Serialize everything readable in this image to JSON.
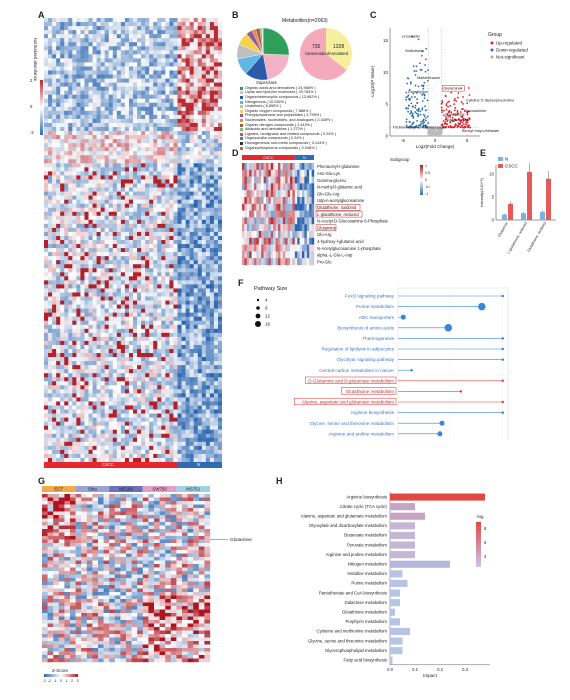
{
  "panels": {
    "A": {
      "letter": "A",
      "legend_title": "Normalized abundance",
      "legend_ticks": [
        "2",
        "1",
        "0",
        "-1",
        "-2"
      ],
      "groups": [
        "CSCC",
        "N"
      ],
      "group_colors": [
        "#e8262b",
        "#2f6db3"
      ]
    },
    "B": {
      "letter": "B",
      "pie1_title": "Metabolites(n=2063)",
      "pie2_labels": [
        "735\nUnannotated",
        "1328\nAnnotated"
      ],
      "pie2_a": "735",
      "pie2_a_sub": "Unannotated",
      "pie2_b": "1328",
      "pie2_b_sub": "Annotated",
      "superclass_title": "Superclass",
      "superclass_items": [
        {
          "label": "Organic acids and derivatives ( 24.968% )",
          "color": "#2e9e5b"
        },
        {
          "label": "Lipids and lipid-like molecules ( 20.783% )",
          "color": "#f3b3c7"
        },
        {
          "label": "Organoheterocyclic compounds ( 13.962% )",
          "color": "#2a5aa8"
        },
        {
          "label": "Nitrogenous ( 10.236% )",
          "color": "#5fb7e6"
        },
        {
          "label": "Undefined ( 8.855% )",
          "color": "#bfbfbf"
        },
        {
          "label": "Organic oxygen compounds ( 7.886% )",
          "color": "#f7d34c"
        },
        {
          "label": "Phenylpropanoids and polyketides ( 3.795% )",
          "color": "#8e5aa8"
        },
        {
          "label": "Nucleosides, nucleotides, and analogues ( 2.338% )",
          "color": "#e88a3c"
        },
        {
          "label": "Organic nitrogen compounds ( 2.443% )",
          "color": "#a55a3c"
        },
        {
          "label": "Alkaloids and derivatives ( 1.272% )",
          "color": "#7fbf7f"
        },
        {
          "label": "Lignans, neolignans and related compounds ( 0.24% )",
          "color": "#d64b6b"
        },
        {
          "label": "Organosulfur compounds ( 0.24% )",
          "color": "#4b8b8b"
        },
        {
          "label": "Homogeneous non-metal compounds ( 0.144% )",
          "color": "#333333"
        },
        {
          "label": "Organophosphorus compounds ( 0.048% )",
          "color": "#9b7b3c"
        }
      ]
    },
    "C": {
      "letter": "C",
      "ylabel": "-Log10(P Value)",
      "xlabel": "Log2(Fold Change)",
      "legend_title": "Group",
      "legend_items": [
        {
          "label": "Up-regulated",
          "color": "#d7242b"
        },
        {
          "label": "Down-regulated",
          "color": "#2d6fb5"
        },
        {
          "label": "Not-significant",
          "color": "#aaaaaa"
        }
      ],
      "labels": [
        "Linoelaidin",
        "Maltotriose",
        "Maltotetraose",
        "Dimethylpin",
        "Trichlormethyl-ammonium base",
        "Glutamine",
        "Cytidine 5'-diphosphocholine",
        "Glucosamine",
        "Glutathione",
        "Gentisic acid",
        "Benzyl butyl phthalate"
      ],
      "yticks": [
        "15",
        "10",
        "5",
        "0"
      ],
      "xticks": [
        "-5",
        "0",
        "5"
      ]
    },
    "D": {
      "letter": "D",
      "top_groups": [
        "CSCC",
        "N"
      ],
      "legend_title": "Subgroup",
      "rows": [
        "Phenacetyl-l-glutamine",
        "Asn-Glu-Lys",
        "Gamma-glu-leu",
        "N-methyl-l-glutamic acid",
        "Gln-Glu-Arg",
        "Udp-n-acetylglucosamine",
        "Glutathione, oxidized",
        "L-glutathione, reduced",
        "N-Acetyl-D-Glucosamine 6-Phosphate",
        "Glutamine",
        "Glu-Arg",
        "4-hydroxy-l-glutamic acid",
        "N-Acetylglucosamine 1-phosphate",
        "alpha.-L-Glu-L-Asp",
        "Pro-Glu"
      ],
      "boxed_rows": [
        "Glutathione, oxidized",
        "L-glutathione, reduced",
        "Glutamine"
      ],
      "scale_ticks": [
        "1",
        "0.5",
        "0",
        "-0.5",
        "-1"
      ]
    },
    "E": {
      "letter": "E",
      "ylabel": "Intensity(X10^7)",
      "legend_items": [
        {
          "label": "N",
          "color": "#7ab3e0"
        },
        {
          "label": "CSCC",
          "color": "#e45a5a"
        }
      ],
      "categories": [
        "Glutamine",
        "L-glutathione, reduced",
        "Glutathione, oxidized"
      ],
      "yticks": [
        "10",
        "5",
        "0"
      ]
    },
    "F": {
      "letter": "F",
      "size_title": "Pathway Size",
      "size_values": [
        "4",
        "8",
        "12",
        "16"
      ],
      "xticks": [
        "0.0",
        "0.5",
        "1.0"
      ],
      "pathways": [
        "FoxO signaling pathway",
        "Purine metabolism",
        "ABC transporters",
        "Biosynthesis of amino acids",
        "Thermogenesis",
        "Regulation of lipolysis in adipocytes",
        "Glycolytic signaling pathway",
        "Central carbon metabolism in cancer",
        "D-Glutamine and D-glutamate metabolism",
        "Glutathione metabolism",
        "Alanine, aspartate and glutamate metabolism",
        "Arginine biosynthesis",
        "Glycine, serine and threonine metabolism",
        "Arginine and proline metabolism"
      ],
      "highlighted": [
        "D-Glutamine and D-glutamate metabolism",
        "Glutathione metabolism",
        "Alanine, aspartate and glutamate metabolism"
      ]
    },
    "G": {
      "letter": "G",
      "groups": [
        "ECT",
        "Siha",
        "ME180",
        "SW756",
        "MS751"
      ],
      "group_colors": [
        "#f2a94a",
        "#9aa3d6",
        "#6a72b8",
        "#e2a0c8",
        "#9fd0e6"
      ],
      "row_label": "Glutamine",
      "scale_title": "Z-Score",
      "scale_ticks": [
        "-3",
        "-2",
        "-1",
        "0",
        "1",
        "2",
        "3"
      ]
    },
    "H": {
      "letter": "H",
      "pathways": [
        "Arginine biosynthesis",
        "Citrate cycle (TCA cycle)",
        "Alanine, aspartate and glutamate metabolism",
        "Glyoxylate and dicarboxylate metabolism",
        "Butanoate metabolism",
        "Pyruvate metabolism",
        "Arginine and proline metabolism",
        "Nitrogen metabolism",
        "Histidine metabolism",
        "Purine metabolism",
        "Pantothenate and CoA biosynthesis",
        "Galactose metabolism",
        "Glutathione metabolism",
        "Porphyrin metabolism",
        "Cysteine and methionine metabolism",
        "Glycine, serine and threonine metabolism",
        "Glycerophospholipid metabolism",
        "Fatty acid biosynthesis"
      ],
      "impact": [
        0.38,
        0.1,
        0.14,
        0.1,
        0.1,
        0.1,
        0.1,
        0.24,
        0.05,
        0.07,
        0.04,
        0.04,
        0.02,
        0.04,
        0.08,
        0.05,
        0.05,
        0.01
      ],
      "xlabel": "Impact",
      "xticks": [
        "0.0",
        "0.1",
        "0.2",
        "0.3"
      ],
      "legend_title": "-log",
      "legend_ticks": [
        "8",
        "6",
        "4"
      ]
    }
  },
  "chart_data": [
    {
      "type": "scatter",
      "title": "F",
      "categories": [
        "FoxO signaling pathway",
        "Purine metabolism",
        "ABC transporters",
        "Biosynthesis of amino acids",
        "Thermogenesis",
        "Regulation of lipolysis in adipocytes",
        "Glycolytic signaling pathway",
        "Central carbon metabolism in cancer",
        "D-Glutamine and D-glutamate metabolism",
        "Glutathione metabolism",
        "Alanine, aspartate and glutamate metabolism",
        "Arginine biosynthesis",
        "Glycine, serine and threonine metabolism",
        "Arginine and proline metabolism"
      ],
      "values": [
        1.0,
        0.8,
        0.05,
        0.48,
        1.0,
        1.0,
        1.0,
        0.13,
        1.0,
        0.6,
        1.0,
        1.0,
        0.42,
        0.4
      ],
      "sizes": [
        4,
        12,
        8,
        12,
        4,
        4,
        4,
        4,
        4,
        4,
        4,
        4,
        8,
        8
      ],
      "highlight": [
        false,
        false,
        false,
        false,
        false,
        false,
        false,
        false,
        true,
        true,
        true,
        false,
        false,
        false
      ],
      "xlim": [
        0,
        1.05
      ]
    },
    {
      "type": "bar",
      "title": "H",
      "categories": [
        "Arginine biosynthesis",
        "Citrate cycle (TCA cycle)",
        "Alanine, aspartate and glutamate metabolism",
        "Glyoxylate and dicarboxylate metabolism",
        "Butanoate metabolism",
        "Pyruvate metabolism",
        "Arginine and proline metabolism",
        "Nitrogen metabolism",
        "Histidine metabolism",
        "Purine metabolism",
        "Pantothenate and CoA biosynthesis",
        "Galactose metabolism",
        "Glutathione metabolism",
        "Porphyrin metabolism",
        "Cysteine and methionine metabolism",
        "Glycine, serine and threonine metabolism",
        "Glycerophospholipid metabolism",
        "Fatty acid biosynthesis"
      ],
      "values": [
        0.38,
        0.1,
        0.14,
        0.1,
        0.1,
        0.1,
        0.1,
        0.24,
        0.05,
        0.07,
        0.04,
        0.04,
        0.02,
        0.04,
        0.08,
        0.05,
        0.05,
        0.01
      ],
      "xlabel": "Impact",
      "xlim": [
        0,
        0.4
      ]
    },
    {
      "type": "bar",
      "title": "E",
      "categories": [
        "Glutamine",
        "L-glutathione, reduced",
        "Glutathione, oxidized"
      ],
      "series": [
        {
          "name": "N",
          "values": [
            1.2,
            1.5,
            1.8
          ]
        },
        {
          "name": "CSCC",
          "values": [
            3.5,
            10.5,
            9.0
          ]
        }
      ],
      "ylim": [
        0,
        12
      ]
    }
  ]
}
